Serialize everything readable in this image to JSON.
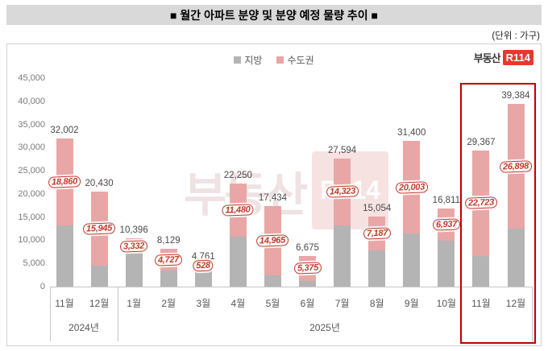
{
  "header": {
    "title": "■ 월간 아파트 분양 및 분양 예정 물량 추이 ■",
    "unit_label": "(단위 : 가구)"
  },
  "legend": {
    "items": [
      {
        "label": "지방",
        "color": "#b4b4b4"
      },
      {
        "label": "수도권",
        "color": "#e9a6a6"
      }
    ]
  },
  "logo": {
    "text": "부동산",
    "badge": "R114"
  },
  "watermark": {
    "text": "부동산",
    "badge": "R114"
  },
  "colors": {
    "jibang_bar": "#b4b4b4",
    "sudogwon_bar": "#e9a6a6",
    "value_sticker": "#c0392b",
    "highlight_box": "#c00000",
    "title_band": "#d9d9d9",
    "logo_red": "#e6392e"
  },
  "chart_data": {
    "type": "bar",
    "stacked": true,
    "title": "■ 월간 아파트 분양 및 분양 예정 물량 추이 ■",
    "unit": "(단위 : 가구)",
    "ylim": [
      0,
      45000
    ],
    "ytick_step": 5000,
    "grid": false,
    "legend_position": "top-center",
    "categories": [
      "11월",
      "12월",
      "1월",
      "2월",
      "3월",
      "4월",
      "5월",
      "6월",
      "7월",
      "8월",
      "9월",
      "10월",
      "11월",
      "12월"
    ],
    "groups": [
      {
        "label": "2024년",
        "span": [
          0,
          1
        ]
      },
      {
        "label": "2025년",
        "span": [
          2,
          13
        ]
      }
    ],
    "series": [
      {
        "name": "지방",
        "color": "#b4b4b4",
        "values": [
          13142,
          4485,
          7064,
          3402,
          4233,
          10770,
          2469,
          1300,
          13271,
          7867,
          11397,
          9874,
          6644,
          12486
        ]
      },
      {
        "name": "수도권",
        "color": "#e9a6a6",
        "values": [
          18860,
          15945,
          3332,
          4727,
          528,
          11480,
          14965,
          5375,
          14323,
          7187,
          20003,
          6937,
          22723,
          26898
        ]
      }
    ],
    "totals": [
      32002,
      20430,
      10396,
      8129,
      4761,
      22250,
      17434,
      6675,
      27594,
      15054,
      31400,
      16811,
      29367,
      39384
    ],
    "labeled_series": "수도권",
    "highlight": {
      "indices": [
        12,
        13
      ],
      "color": "#c00000"
    }
  }
}
